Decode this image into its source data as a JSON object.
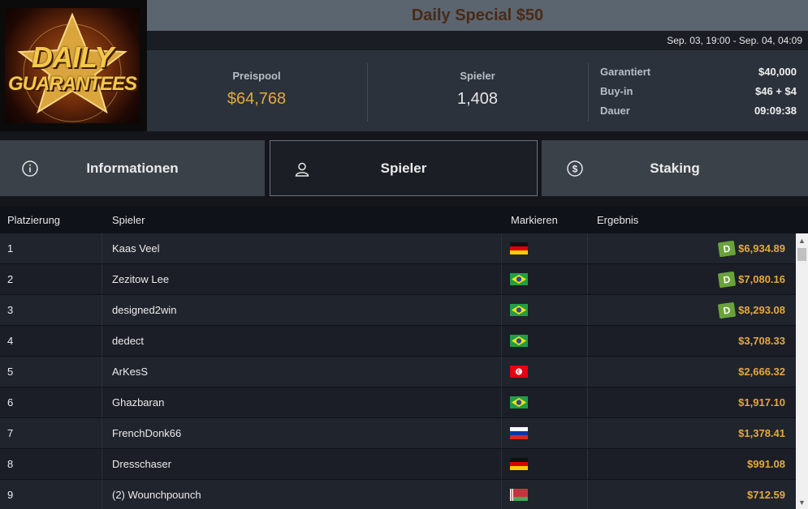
{
  "logo": {
    "line1": "DAILY",
    "line2": "GUARANTEES"
  },
  "tournament": {
    "title": "Daily Special $50",
    "dates": "Sep. 03, 19:00 - Sep. 04, 04:09"
  },
  "stats": {
    "prizepool_label": "Preispool",
    "prizepool_value": "$64,768",
    "players_label": "Spieler",
    "players_value": "1,408",
    "guaranteed_label": "Garantiert",
    "guaranteed_value": "$40,000",
    "buyin_label": "Buy-in",
    "buyin_value": "$46 + $4",
    "duration_label": "Dauer",
    "duration_value": "09:09:38"
  },
  "tabs": [
    {
      "label": "Informationen",
      "icon": "info-icon"
    },
    {
      "label": "Spieler",
      "icon": "user-icon"
    },
    {
      "label": "Staking",
      "icon": "dollar-icon"
    }
  ],
  "table": {
    "headers": {
      "placement": "Platzierung",
      "player": "Spieler",
      "flag": "Markieren",
      "result": "Ergebnis"
    },
    "rows": [
      {
        "place": "1",
        "name": "Kaas Veel",
        "flag": "DE",
        "result": "$6,934.89",
        "badge": "D"
      },
      {
        "place": "2",
        "name": "Zezitow Lee",
        "flag": "BR",
        "result": "$7,080.16",
        "badge": "D"
      },
      {
        "place": "3",
        "name": "designed2win",
        "flag": "BR",
        "result": "$8,293.08",
        "badge": "D"
      },
      {
        "place": "4",
        "name": "dedect",
        "flag": "BR",
        "result": "$3,708.33",
        "badge": ""
      },
      {
        "place": "5",
        "name": "ArKesS",
        "flag": "TN",
        "result": "$2,666.32",
        "badge": ""
      },
      {
        "place": "6",
        "name": "Ghazbaran",
        "flag": "BR",
        "result": "$1,917.10",
        "badge": ""
      },
      {
        "place": "7",
        "name": "FrenchDonk66",
        "flag": "RU",
        "result": "$1,378.41",
        "badge": ""
      },
      {
        "place": "8",
        "name": "Dresschaser",
        "flag": "DE",
        "result": "$991.08",
        "badge": ""
      },
      {
        "place": "9",
        "name": "(2) Wounchpounch",
        "flag": "BY",
        "result": "$712.59",
        "badge": ""
      }
    ]
  },
  "colors": {
    "gold": "#e3a93e",
    "title": "#4a2a14",
    "panel": "#2c323b"
  }
}
